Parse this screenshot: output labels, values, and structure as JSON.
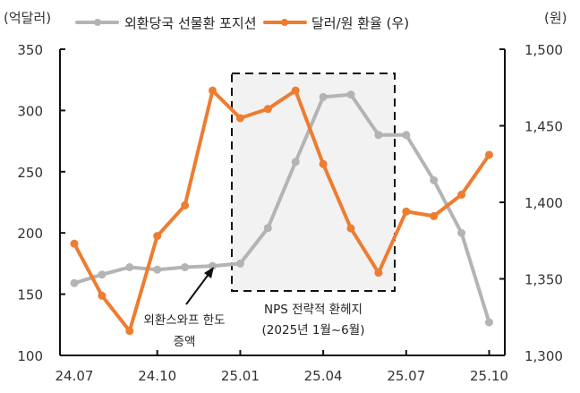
{
  "chart_data": {
    "type": "line",
    "title": "",
    "x": [
      "24.07",
      "24.08",
      "24.09",
      "24.10",
      "24.11",
      "24.12",
      "25.01",
      "25.02",
      "25.03",
      "25.04",
      "25.05",
      "25.06",
      "25.07",
      "25.08",
      "25.09",
      "25.10"
    ],
    "xtick_labels": [
      "24.07",
      "24.10",
      "25.01",
      "25.04",
      "25.07",
      "25.10"
    ],
    "ylabel_left": "(억달러)",
    "ylabel_right": "(원)",
    "ylim_left": [
      100,
      350
    ],
    "yticks_left": [
      100,
      150,
      200,
      250,
      300,
      350
    ],
    "ylim_right": [
      1300,
      1500
    ],
    "yticks_right": [
      "1,300",
      "1,350",
      "1,400",
      "1,450",
      "1,500"
    ],
    "yticks_right_values": [
      1300,
      1350,
      1400,
      1450,
      1500
    ],
    "grid": false,
    "legend_position": "top",
    "series": [
      {
        "name": "외환당국 선물환 포지션",
        "axis": "left",
        "color": "#b4b4b4",
        "values": [
          159,
          166,
          172,
          170,
          172,
          173,
          175,
          204,
          258,
          311,
          313,
          280,
          280,
          243,
          200,
          127
        ]
      },
      {
        "name": "달러/원 환율 (우)",
        "axis": "right",
        "color": "#ed7d31",
        "values": [
          1373,
          1339,
          1316,
          1378,
          1398,
          1473,
          1455,
          1461,
          1473,
          1425,
          1383,
          1354,
          1394,
          1391,
          1405,
          1431
        ]
      }
    ],
    "annotations": [
      {
        "text_line1": "외환스와프 한도",
        "text_line2": "증액",
        "arrow_to": "24.12"
      },
      {
        "text_line1": "NPS 전략적 환헤지",
        "text_line2": "(2025년 1월~6월)",
        "box_from": "25.01",
        "box_to": "25.06"
      }
    ]
  },
  "labels": {
    "left_unit": "(억달러)",
    "right_unit": "(원)",
    "legend_gray": "외환당국 선물환 포지션",
    "legend_orange": "달러/원 환율 (우)",
    "annot_swap_1": "외환스와프 한도",
    "annot_swap_2": "증액",
    "annot_nps_1": "NPS 전략적 환헤지",
    "annot_nps_2": "(2025년 1월~6월)"
  }
}
